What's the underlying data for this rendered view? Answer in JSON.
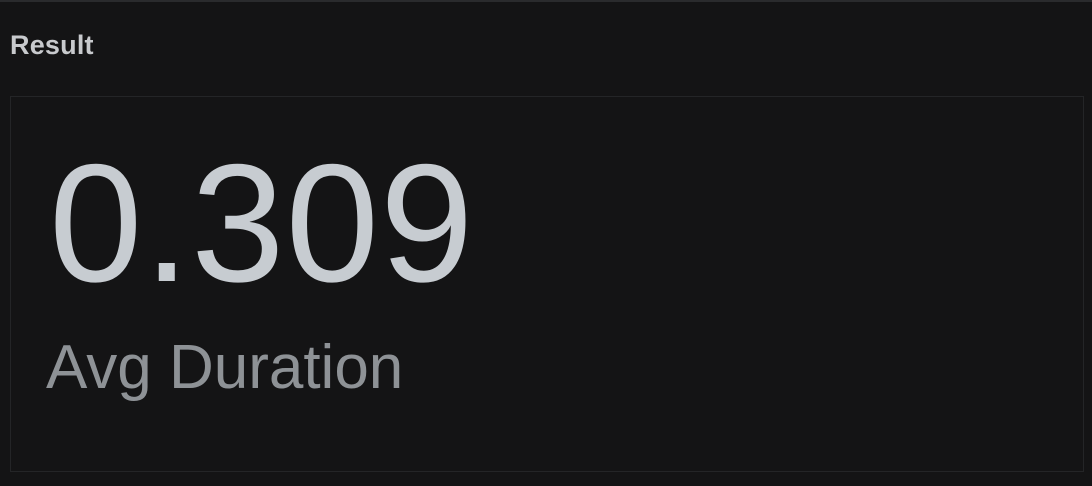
{
  "panel": {
    "title": "Result"
  },
  "stat": {
    "value": "0.309",
    "label": "Avg Duration"
  },
  "colors": {
    "background": "#141415",
    "value_text": "#c7ccd1",
    "label_text": "#8e9296",
    "header_text": "#c8cacd"
  }
}
